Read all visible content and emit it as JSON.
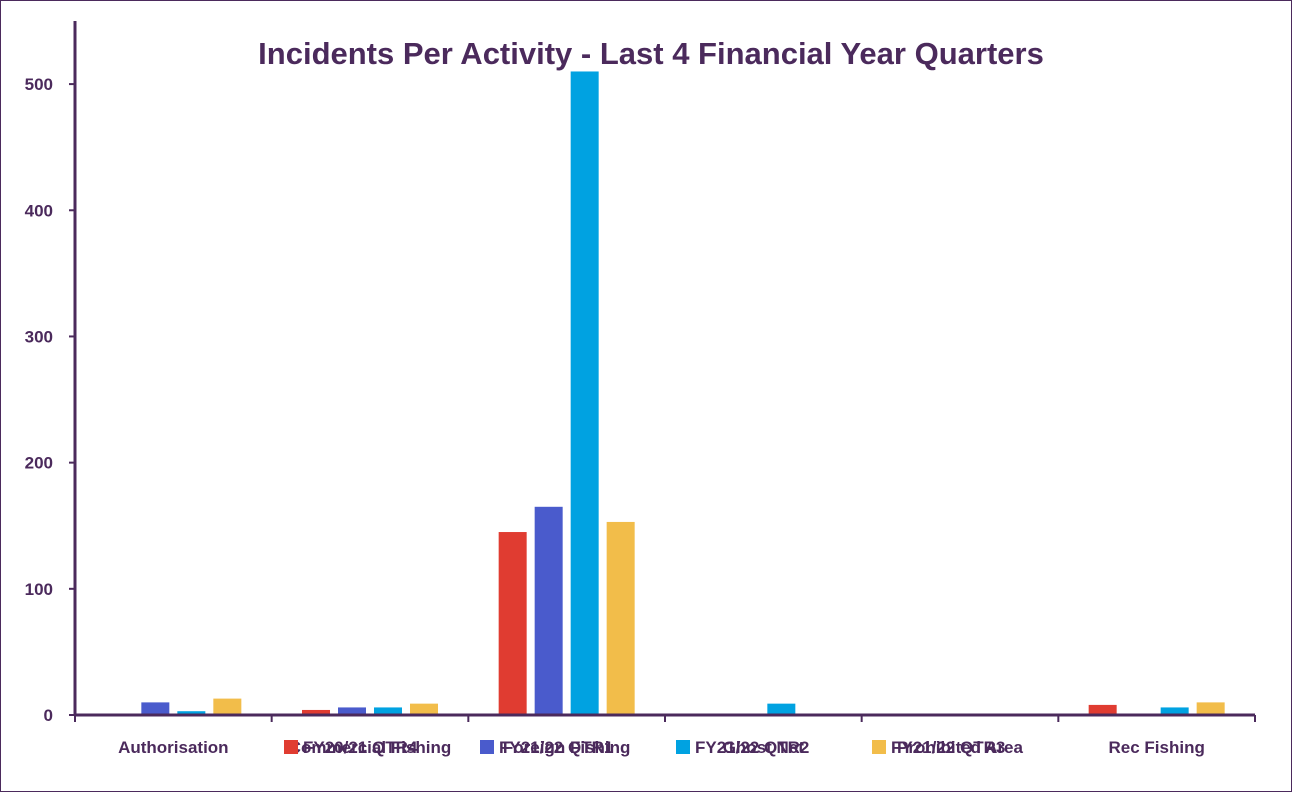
{
  "chart_data": {
    "type": "bar",
    "title": "Incidents Per Activity - Last 4 Financial Year Quarters",
    "xlabel": "",
    "ylabel": "",
    "ylim": [
      0,
      550
    ],
    "yticks": [
      0,
      100,
      200,
      300,
      400,
      500
    ],
    "categories": [
      "Authorisation",
      "Commercial Fishing",
      "Foreign Fishing",
      "Ghost Net",
      "Prohibited Area",
      "Rec Fishing"
    ],
    "series": [
      {
        "name": "FY20/21 QTR4",
        "color": "#e03c31",
        "values": [
          0,
          4,
          145,
          0,
          0,
          8
        ]
      },
      {
        "name": "FY21/22 QTR1",
        "color": "#4a5bcc",
        "values": [
          10,
          6,
          165,
          0,
          0,
          0
        ]
      },
      {
        "name": "FY21/22 QTR2",
        "color": "#00a2e1",
        "values": [
          3,
          6,
          510,
          9,
          0,
          6
        ]
      },
      {
        "name": "FY21/22 QTR3",
        "color": "#f2bd4a",
        "values": [
          13,
          9,
          153,
          0,
          0,
          10
        ]
      }
    ],
    "grid": false,
    "legend": "bottom"
  }
}
